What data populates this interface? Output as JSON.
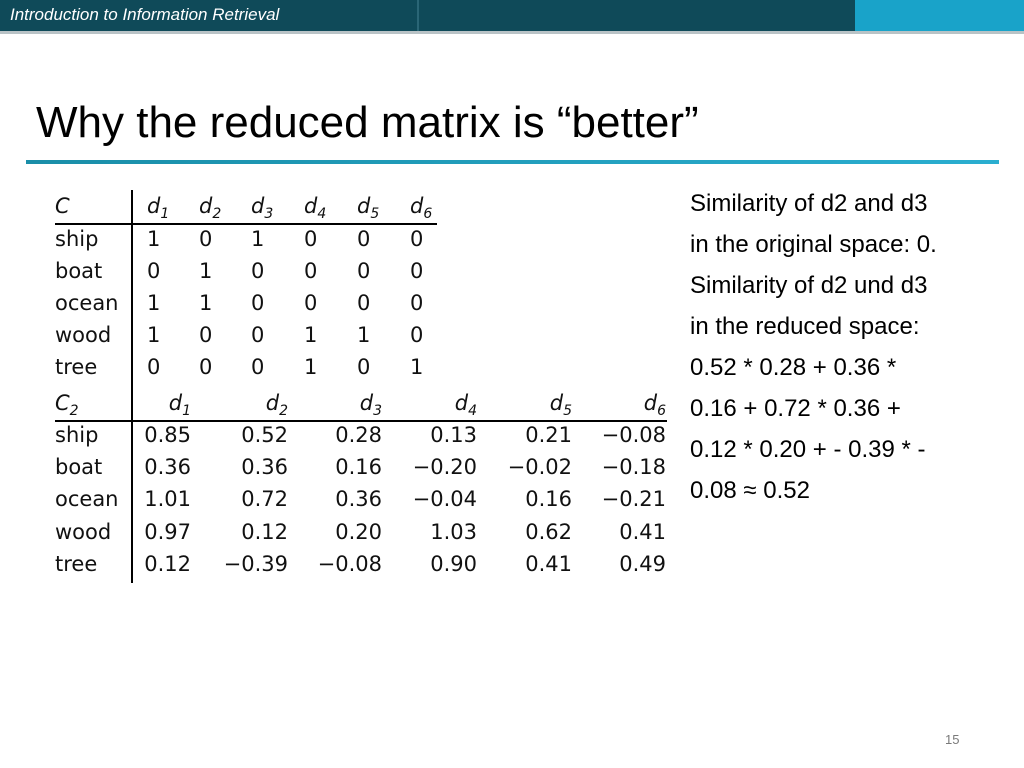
{
  "header": {
    "title": "Introduction to Information Retrieval"
  },
  "slide": {
    "title": "Why the reduced matrix is “better”",
    "page_number": "15"
  },
  "matrix_c": {
    "corner": {
      "main": "C",
      "sub": ""
    },
    "columns": [
      {
        "main": "d",
        "sub": "1"
      },
      {
        "main": "d",
        "sub": "2"
      },
      {
        "main": "d",
        "sub": "3"
      },
      {
        "main": "d",
        "sub": "4"
      },
      {
        "main": "d",
        "sub": "5"
      },
      {
        "main": "d",
        "sub": "6"
      }
    ],
    "rows": [
      {
        "label": "ship",
        "cells": [
          "1",
          "0",
          "1",
          "0",
          "0",
          "0"
        ]
      },
      {
        "label": "boat",
        "cells": [
          "0",
          "1",
          "0",
          "0",
          "0",
          "0"
        ]
      },
      {
        "label": "ocean",
        "cells": [
          "1",
          "1",
          "0",
          "0",
          "0",
          "0"
        ]
      },
      {
        "label": "wood",
        "cells": [
          "1",
          "0",
          "0",
          "1",
          "1",
          "0"
        ]
      },
      {
        "label": "tree",
        "cells": [
          "0",
          "0",
          "0",
          "1",
          "0",
          "1"
        ]
      }
    ]
  },
  "matrix_c2": {
    "corner": {
      "main": "C",
      "sub": "2"
    },
    "columns": [
      {
        "main": "d",
        "sub": "1"
      },
      {
        "main": "d",
        "sub": "2"
      },
      {
        "main": "d",
        "sub": "3"
      },
      {
        "main": "d",
        "sub": "4"
      },
      {
        "main": "d",
        "sub": "5"
      },
      {
        "main": "d",
        "sub": "6"
      }
    ],
    "rows": [
      {
        "label": "ship",
        "cells": [
          "0.85",
          "0.52",
          "0.28",
          "0.13",
          "0.21",
          "−0.08"
        ]
      },
      {
        "label": "boat",
        "cells": [
          "0.36",
          "0.36",
          "0.16",
          "−0.20",
          "−0.02",
          "−0.18"
        ]
      },
      {
        "label": "ocean",
        "cells": [
          "1.01",
          "0.72",
          "0.36",
          "−0.04",
          "0.16",
          "−0.21"
        ]
      },
      {
        "label": "wood",
        "cells": [
          "0.97",
          "0.12",
          "0.20",
          "1.03",
          "0.62",
          "0.41"
        ]
      },
      {
        "label": "tree",
        "cells": [
          "0.12",
          "−0.39",
          "−0.08",
          "0.90",
          "0.41",
          "0.49"
        ]
      }
    ]
  },
  "explanation": {
    "lines": [
      "Similarity of d2 and d3",
      "in the original space: 0.",
      "Similarity of d2 und d3",
      "in the reduced space:",
      "0.52 * 0.28 + 0.36 *",
      "0.16 + 0.72 * 0.36 +",
      "0.12 * 0.20 + - 0.39 * -",
      "0.08 ≈ 0.52"
    ]
  }
}
